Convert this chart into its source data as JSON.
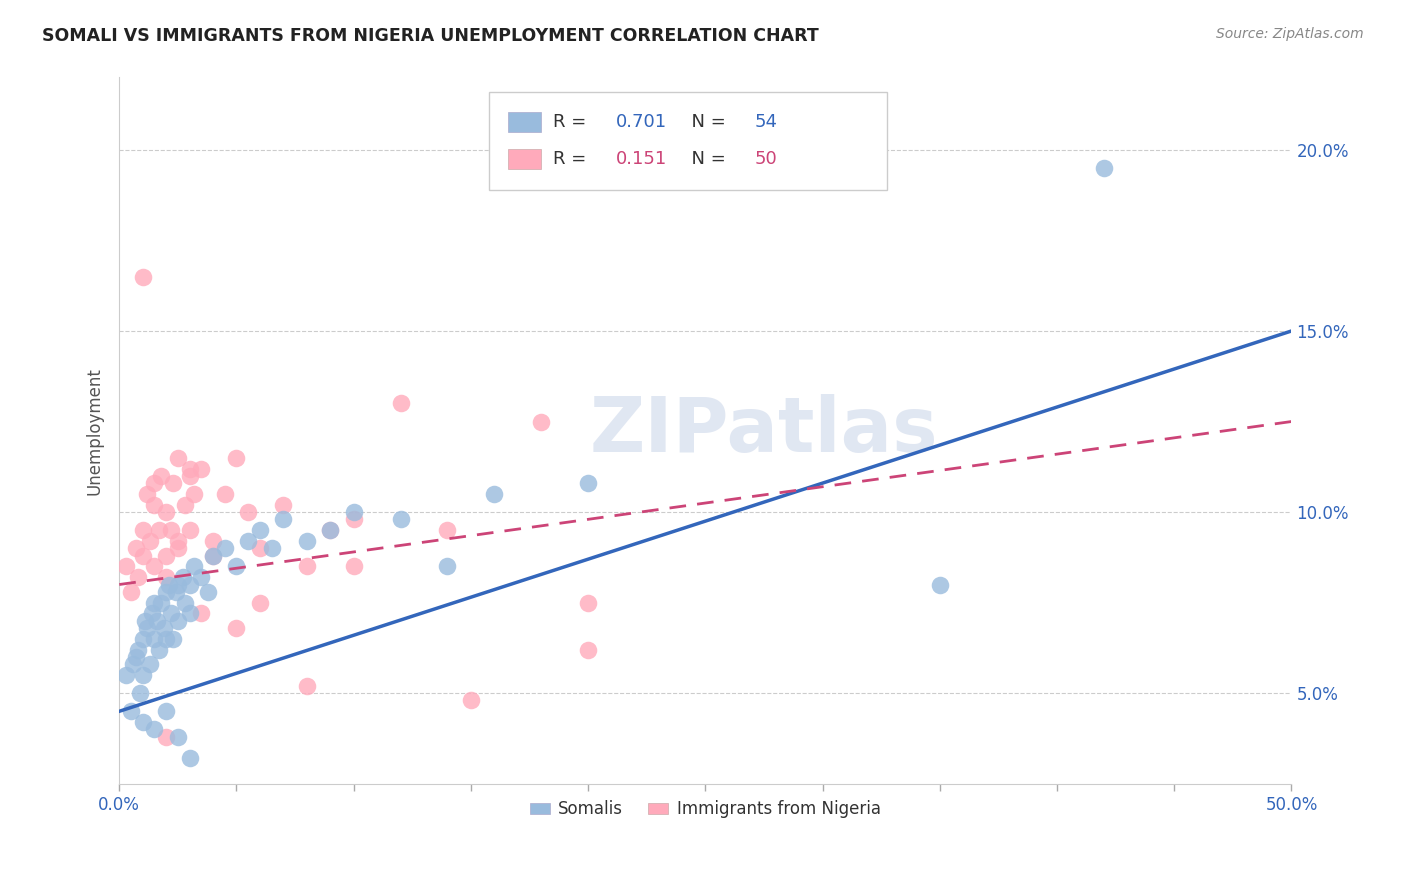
{
  "title": "SOMALI VS IMMIGRANTS FROM NIGERIA UNEMPLOYMENT CORRELATION CHART",
  "source": "Source: ZipAtlas.com",
  "ylabel": "Unemployment",
  "xlim": [
    0.0,
    50.0
  ],
  "ylim": [
    2.5,
    22.0
  ],
  "ytick_labels": [
    "5.0%",
    "10.0%",
    "15.0%",
    "20.0%"
  ],
  "ytick_values": [
    5.0,
    10.0,
    15.0,
    20.0
  ],
  "xtick_values": [
    0.0,
    5.0,
    10.0,
    15.0,
    20.0,
    25.0,
    30.0,
    35.0,
    40.0,
    45.0,
    50.0
  ],
  "xtick_label_left": "0.0%",
  "xtick_label_right": "50.0%",
  "somali_color": "#99BBDD",
  "nigeria_color": "#FFAABB",
  "somali_R": 0.701,
  "somali_N": 54,
  "nigeria_R": 0.151,
  "nigeria_N": 50,
  "somali_line_color": "#3366BB",
  "nigeria_line_color": "#CC4477",
  "somali_line_x0": 0.0,
  "somali_line_y0": 4.5,
  "somali_line_x1": 50.0,
  "somali_line_y1": 15.0,
  "nigeria_line_x0": 0.0,
  "nigeria_line_y0": 8.0,
  "nigeria_line_x1": 50.0,
  "nigeria_line_y1": 12.5,
  "watermark": "ZIPatlas",
  "legend_label_1": "Somalis",
  "legend_label_2": "Immigrants from Nigeria",
  "somali_x": [
    0.3,
    0.5,
    0.6,
    0.7,
    0.8,
    0.9,
    1.0,
    1.0,
    1.1,
    1.2,
    1.3,
    1.4,
    1.5,
    1.5,
    1.6,
    1.7,
    1.8,
    1.9,
    2.0,
    2.0,
    2.1,
    2.2,
    2.3,
    2.4,
    2.5,
    2.5,
    2.7,
    2.8,
    3.0,
    3.0,
    3.2,
    3.5,
    3.8,
    4.0,
    4.5,
    5.0,
    5.5,
    6.0,
    6.5,
    7.0,
    8.0,
    9.0,
    10.0,
    12.0,
    14.0,
    16.0,
    20.0,
    35.0,
    42.0,
    1.0,
    1.5,
    2.0,
    2.5,
    3.0
  ],
  "somali_y": [
    5.5,
    4.5,
    5.8,
    6.0,
    6.2,
    5.0,
    6.5,
    5.5,
    7.0,
    6.8,
    5.8,
    7.2,
    6.5,
    7.5,
    7.0,
    6.2,
    7.5,
    6.8,
    7.8,
    6.5,
    8.0,
    7.2,
    6.5,
    7.8,
    8.0,
    7.0,
    8.2,
    7.5,
    8.0,
    7.2,
    8.5,
    8.2,
    7.8,
    8.8,
    9.0,
    8.5,
    9.2,
    9.5,
    9.0,
    9.8,
    9.2,
    9.5,
    10.0,
    9.8,
    8.5,
    10.5,
    10.8,
    8.0,
    19.5,
    4.2,
    4.0,
    4.5,
    3.8,
    3.2
  ],
  "nigeria_x": [
    0.3,
    0.5,
    0.7,
    0.8,
    1.0,
    1.0,
    1.2,
    1.3,
    1.5,
    1.5,
    1.7,
    1.8,
    2.0,
    2.0,
    2.2,
    2.3,
    2.5,
    2.5,
    2.8,
    3.0,
    3.0,
    3.2,
    3.5,
    4.0,
    4.5,
    5.0,
    5.5,
    6.0,
    7.0,
    8.0,
    9.0,
    10.0,
    12.0,
    14.0,
    18.0,
    20.0,
    1.0,
    1.5,
    2.0,
    2.5,
    3.0,
    3.5,
    4.0,
    5.0,
    6.0,
    8.0,
    10.0,
    15.0,
    20.0,
    2.0
  ],
  "nigeria_y": [
    8.5,
    7.8,
    9.0,
    8.2,
    9.5,
    8.8,
    10.5,
    9.2,
    8.5,
    10.2,
    9.5,
    11.0,
    10.0,
    8.8,
    9.5,
    10.8,
    9.0,
    11.5,
    10.2,
    9.5,
    11.0,
    10.5,
    11.2,
    9.2,
    10.5,
    11.5,
    10.0,
    9.0,
    10.2,
    8.5,
    9.5,
    9.8,
    13.0,
    9.5,
    12.5,
    7.5,
    16.5,
    10.8,
    8.2,
    9.2,
    11.2,
    7.2,
    8.8,
    6.8,
    7.5,
    5.2,
    8.5,
    4.8,
    6.2,
    3.8
  ]
}
